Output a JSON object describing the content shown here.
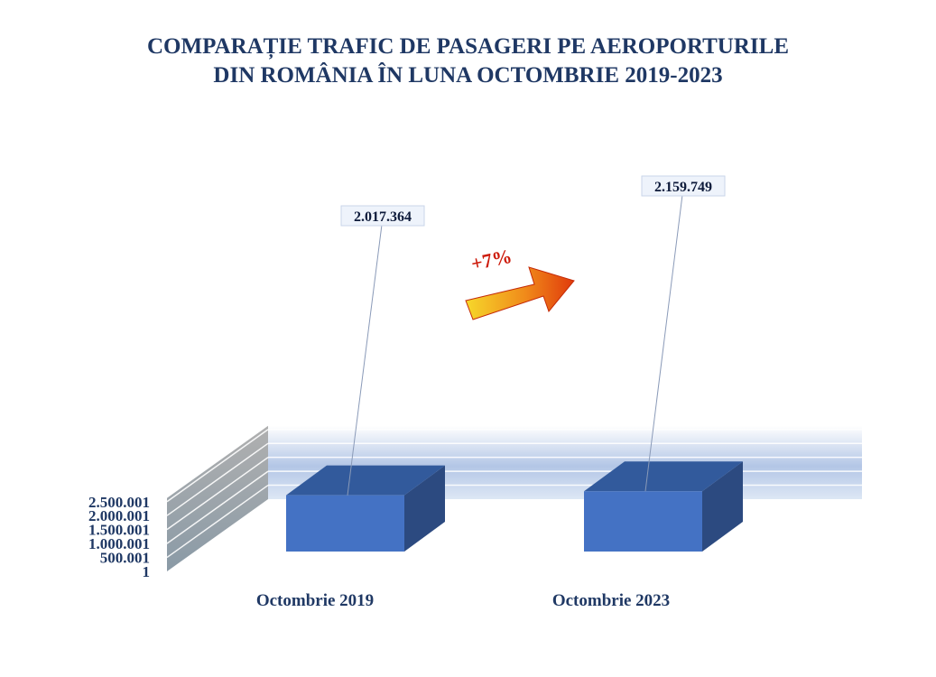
{
  "chart_data": {
    "type": "bar",
    "title": "COMPARAȚIE TRAFIC DE PASAGERI PE AEROPORTURILE DIN ROMÂNIA ÎN LUNA OCTOMBRIE 2019-2023",
    "title_lines": [
      "COMPARAȚIE TRAFIC DE PASAGERI PE AEROPORTURILE",
      "DIN ROMÂNIA ÎN LUNA OCTOMBRIE 2019-2023"
    ],
    "categories": [
      "Octombrie 2019",
      "Octombrie 2023"
    ],
    "values": [
      2017364,
      2159749
    ],
    "data_labels": [
      "2.017.364",
      "2.159.749"
    ],
    "y_ticks": [
      1,
      500001,
      1000001,
      1500001,
      2000001,
      2500001
    ],
    "y_tick_labels": [
      "1",
      "500.001",
      "1.000.001",
      "1.500.001",
      "2.000.001",
      "2.500.001"
    ],
    "ylim": [
      1,
      2500001
    ],
    "xlabel": "",
    "ylabel": "",
    "grid": true,
    "style": "3d-bar",
    "annotation": "+7%",
    "colors": {
      "bar_front": "#4472c4",
      "bar_side": "#2c4a80",
      "bar_top": "#325a9c",
      "text": "#1f3864",
      "arrow": "#e8380d"
    }
  }
}
